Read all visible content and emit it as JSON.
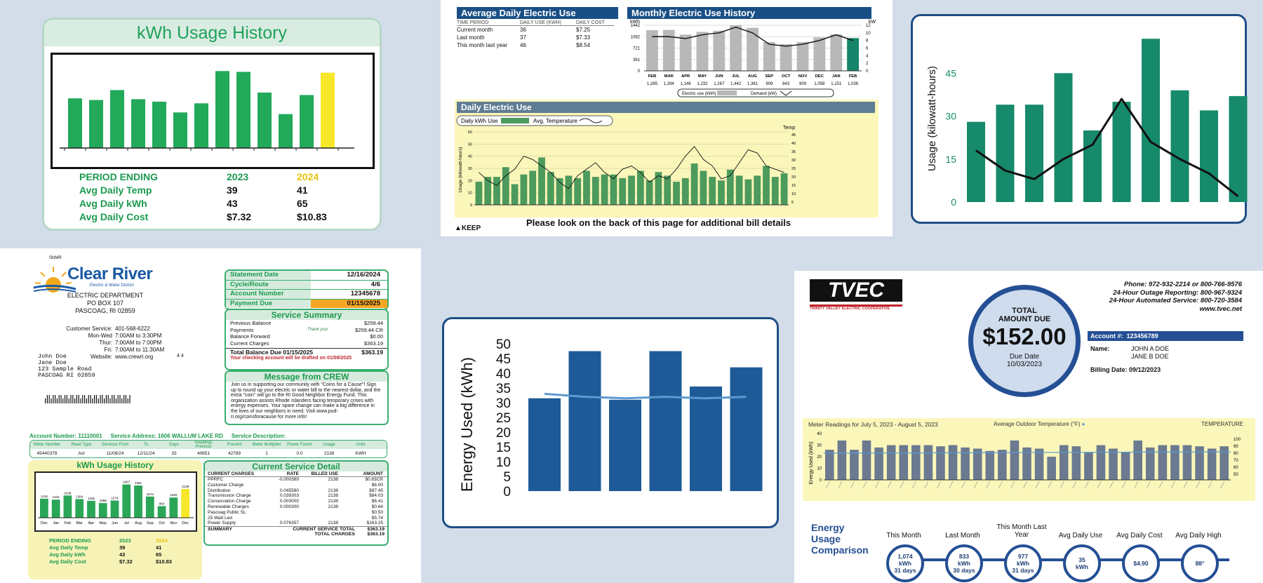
{
  "panel_a": {
    "title": "kWh Usage History",
    "bars": [
      60,
      58,
      70,
      59,
      56,
      43,
      54,
      93,
      92,
      67,
      41,
      64,
      91
    ],
    "highlight_index": 12,
    "colors": {
      "bar": "#22a95a",
      "highlight": "#f6e72a"
    },
    "rows": [
      {
        "label": "PERIOD ENDING",
        "a": "2023",
        "b": "2024"
      },
      {
        "label": "Avg Daily Temp",
        "a": "39",
        "b": "41"
      },
      {
        "label": "Avg Daily kWh",
        "a": "43",
        "b": "65"
      },
      {
        "label": "Avg Daily Cost",
        "a": "$7.32",
        "b": "$10.83"
      }
    ]
  },
  "panel_b": {
    "avg_title": "Average Daily Electric Use",
    "avg_cols": [
      "TIME PERIOD",
      "DAILY USE (KWH)",
      "DAILY COST"
    ],
    "avg_rows": [
      {
        "period": "Current month",
        "use": "36",
        "cost": "$7.25"
      },
      {
        "period": "Last month",
        "use": "37",
        "cost": "$7.33"
      },
      {
        "period": "This month last year",
        "use": "46",
        "cost": "$8.54"
      }
    ],
    "monthly_title": "Monthly Electric Use History",
    "monthly_unit_left": "kWh",
    "monthly_unit_right": "kW",
    "monthly_y_ticks": [
      "1442",
      "1082",
      "721",
      "361",
      "0"
    ],
    "monthly_y2_ticks": [
      "12",
      "10",
      "8",
      "6",
      "4",
      "2",
      "0"
    ],
    "monthly_months": [
      "FEB",
      "MAR",
      "APR",
      "MAY",
      "JUN",
      "JUL",
      "AUG",
      "SEP",
      "OCT",
      "NOV",
      "DEC",
      "JAN",
      "FEB"
    ],
    "monthly_values": [
      "1,285",
      "1,294",
      "1,146",
      "1,232",
      "1,267",
      "1,442",
      "1,361",
      "909",
      "843",
      "909",
      "1,058",
      "1,151",
      "1,036"
    ],
    "monthly_kwh": [
      1285,
      1294,
      1146,
      1232,
      1267,
      1442,
      1361,
      909,
      843,
      909,
      1058,
      1151,
      1036
    ],
    "monthly_demand": [
      9,
      9,
      8.5,
      9.5,
      10,
      11.5,
      10,
      7,
      6.5,
      7,
      8,
      9.5,
      8
    ],
    "monthly_legend": [
      "Electric use (kWh)",
      "Demand (kW)"
    ],
    "daily_title": "Daily Electric Use",
    "daily_legend": [
      "Daily kWh Use",
      "Avg. Temperature"
    ],
    "daily_ylabel": "Usage (kilowatt-hours)",
    "daily_y2label": "Temp",
    "daily_y_ticks": [
      "60",
      "50",
      "40",
      "30",
      "20",
      "10",
      "0"
    ],
    "daily_y2_ticks": [
      "45",
      "40",
      "35",
      "30",
      "25",
      "20",
      "15",
      "10",
      "5"
    ],
    "daily_kwh": [
      19,
      23,
      23,
      31,
      17,
      25,
      28,
      39,
      27,
      22,
      24,
      22,
      28,
      23,
      25,
      25,
      22,
      24,
      28,
      20,
      27,
      24,
      19,
      22,
      34,
      28,
      23,
      20,
      29,
      24,
      21,
      24,
      32,
      23,
      26
    ],
    "daily_temp": [
      20,
      15,
      12,
      18,
      22,
      30,
      28,
      24,
      20,
      14,
      10,
      18,
      22,
      26,
      20,
      16,
      22,
      24,
      20,
      14,
      18,
      16,
      22,
      30,
      36,
      28,
      24,
      16,
      18,
      26,
      34,
      32,
      24,
      22,
      20
    ],
    "footer_note": "Please look on the back of this page for additional bill details",
    "keep": "KEEP"
  },
  "panel_c": {
    "ylabel": "Usage (kilowatt-hours)",
    "y_ticks": [
      "45",
      "30",
      "15",
      "0"
    ],
    "bars": [
      28,
      34,
      34,
      45,
      25,
      35,
      57,
      39,
      32,
      37
    ],
    "line": [
      18,
      11,
      8,
      15,
      20,
      36,
      21,
      15,
      10,
      2
    ],
    "colors": {
      "bar": "#168a6a",
      "line": "#111111"
    }
  },
  "panel_d": {
    "logo_top": "SNMR",
    "logo_name": "Clear River",
    "logo_sub": "Electric & Water District",
    "address": [
      "ELECTRIC DEPARTMENT",
      "PO BOX 107",
      "PASCOAG, RI 02859"
    ],
    "hours": [
      {
        "k": "Customer Service:",
        "v": "401-568-6222"
      },
      {
        "k": "Mon-Wed",
        "v": "7:00AM to 3:30PM"
      },
      {
        "k": "Thur:",
        "v": "7:00AM to 7:00PM"
      },
      {
        "k": "Fri:",
        "v": "7:00AM to 11:30AM"
      },
      {
        "k": "Website:",
        "v": "www.crewri.org"
      }
    ],
    "customer": [
      "John Doe",
      "Jane Doe",
      "123 Sample Road",
      "PASCOAG RI 02859"
    ],
    "customer_code": "4 4",
    "stmt": [
      {
        "k": "Statement Date",
        "v": "12/16/2024"
      },
      {
        "k": "Cycle/Route",
        "v": "4/6"
      },
      {
        "k": "Account Number",
        "v": "12345678"
      },
      {
        "k": "Payment Due",
        "v": "01/15/2025"
      }
    ],
    "service_title": "Service Summary",
    "service": [
      {
        "k": "Previous Balance",
        "m": "",
        "v": "$259.44"
      },
      {
        "k": "Payments",
        "m": "Thank you!",
        "v": "$259.44 CR"
      },
      {
        "k": "Balance Forward",
        "m": "",
        "v": "$0.00"
      },
      {
        "k": "Current Charges",
        "m": "",
        "v": "$363.19"
      }
    ],
    "total_due_label": "Total Balance Due 01/15/2025",
    "total_due": "$363.19",
    "draft_note": "Your checking account will be drafted on 01/08/2025",
    "message_title": "Message from CREW",
    "message_text": "Join us in supporting our community with \"Coins for a Cause\"! Sign up to round up your electric or water bill to the nearest dollar, and the extra \"coin\" will go to the RI Good Neighbor Energy Fund. This organization assists Rhode Islanders facing temporary crises with energy expenses. Your spare change can make a big difference in the lives of our neighbors in need. Visit www.pud-ri.org/coinsforacause for more info!",
    "acct_line": {
      "account": "Account Number: 11110001",
      "service": "Service Address: 1606 WALLUM LAKE RD",
      "desc": "Service Description:"
    },
    "meter_headers": [
      "Meter Number",
      "Read Type",
      "Services From",
      "To",
      "Days",
      "Readings Previous",
      "Present",
      "Meter Multiplier",
      "Power Factor",
      "Usage",
      "Units"
    ],
    "meter_row": [
      "45440378",
      "Act",
      "11/08/24",
      "12/11/24",
      "33",
      "40651",
      "42789",
      "1",
      "0.0",
      "2138",
      "KWH"
    ],
    "mini_title": "kWh Usage History",
    "mini_values": [
      "1415",
      "1344",
      "1649",
      "1384",
      "1255",
      "1088",
      "1274",
      "2467",
      "2391",
      "1573",
      "864",
      "1500",
      "2138"
    ],
    "mini_months": [
      "Dec",
      "Jan",
      "Feb",
      "Mar",
      "Apr",
      "May",
      "Jun",
      "Jul",
      "Aug",
      "Sep",
      "Oct",
      "Nov",
      "Dec"
    ],
    "mini_bars": [
      1415,
      1344,
      1649,
      1384,
      1255,
      1088,
      1274,
      2467,
      2391,
      1573,
      864,
      1500,
      2138
    ],
    "mini_rows": [
      {
        "label": "PERIOD ENDING",
        "a": "2023",
        "b": "2024"
      },
      {
        "label": "Avg Daily Temp",
        "a": "39",
        "b": "41"
      },
      {
        "label": "Avg Daily kWh",
        "a": "43",
        "b": "65"
      },
      {
        "label": "Avg Daily Cost",
        "a": "$7.32",
        "b": "$10.83"
      }
    ],
    "current_title": "Current Service Detail",
    "current_headers": [
      "CURRENT CHARGES",
      "RATE",
      "BILLED USE",
      "AMOUNT"
    ],
    "current_rows": [
      {
        "n": "PPRFC",
        "r": "-0.000389",
        "u": "2138",
        "a": "$0.83CR"
      },
      {
        "n": "Customer Charge",
        "r": "",
        "u": "",
        "a": "$6.00"
      },
      {
        "n": "Distribution",
        "r": "0.045580",
        "u": "2138",
        "a": "$97.45"
      },
      {
        "n": "Transmission Charge",
        "r": "0.039303",
        "u": "2138",
        "a": "$84.03"
      },
      {
        "n": "Conservation Charge",
        "r": "0.003000",
        "u": "2138",
        "a": "$6.41"
      },
      {
        "n": "Renewable Charges",
        "r": "0.000300",
        "u": "2138",
        "a": "$0.64"
      },
      {
        "n": "Pascoag Public SL",
        "r": "",
        "u": "",
        "a": "$0.50"
      },
      {
        "n": "25 Watt Led",
        "r": "",
        "u": "",
        "a": "$5.74"
      },
      {
        "n": "Power Supply",
        "r": "0.076357",
        "u": "2138",
        "a": "$163.25"
      }
    ],
    "summary_label": "SUMMARY",
    "summary_total_label": "CURRENT SERVICE TOTAL",
    "summary_total": "$363.19",
    "total_charges_label": "TOTAL CHARGES",
    "total_charges": "$363.19"
  },
  "panel_e": {
    "ylabel": "Energy Used (kWh)",
    "y_ticks": [
      "50",
      "45",
      "40",
      "35",
      "30",
      "25",
      "20",
      "15",
      "10",
      "5",
      "0"
    ],
    "bars": [
      31.5,
      47.5,
      31,
      47.5,
      35.5,
      42
    ],
    "line": [
      33,
      32,
      31.5,
      32,
      31.5,
      32
    ],
    "colors": {
      "bar": "#1e5a97",
      "line": "#5b9ad1"
    }
  },
  "panel_f": {
    "logo": "TVEC",
    "logo_sub": "TRINITY VALLEY ELECTRIC COOPERATIVE",
    "contacts": [
      {
        "k": "Phone:",
        "v": "972-932-2214 or 800-766-9576"
      },
      {
        "k": "24-Hour Outage Reporting:",
        "v": "800-967-9324"
      },
      {
        "k": "24-Hour Automated Service:",
        "v": "800-720-3584"
      },
      {
        "k": "",
        "v": "www.tvec.net"
      }
    ],
    "total_label": "TOTAL AMOUNT DUE",
    "total": "$152.00",
    "due_label": "Due Date",
    "due_date": "10/03/2023",
    "account_label": "Account #:",
    "account": "123456789",
    "name_label": "Name:",
    "names": [
      "JOHN A DOE",
      "JANE B DOE"
    ],
    "billing_label": "Billing Date:",
    "billing_date": "09/12/2023",
    "chart_title": "Meter Readings for July 5, 2023 - August 5, 2023",
    "chart_legend": "Average Outdoor Temperature (°F)",
    "chart_right": "TEMPERATURE",
    "chart_ylabel": "Energy Used (kWh)",
    "chart_y_ticks": [
      "40",
      "30",
      "20",
      "10",
      "0"
    ],
    "chart_y2_ticks": [
      "100",
      "90",
      "80",
      "70",
      "60",
      "50"
    ],
    "chart_bars": [
      26,
      34,
      26,
      34,
      28,
      30,
      30,
      30,
      30,
      29,
      30,
      28,
      27,
      25,
      26,
      34,
      28,
      27,
      20,
      30,
      29,
      24,
      30,
      27,
      24,
      34,
      28,
      30,
      30,
      30,
      29,
      27,
      29
    ],
    "comparison_label": "Energy Usage Comparison",
    "comparison": [
      {
        "head": "This Month",
        "l1": "1,074",
        "l2": "kWh",
        "l3": "31 days"
      },
      {
        "head": "Last Month",
        "l1": "833",
        "l2": "kWh",
        "l3": "30 days"
      },
      {
        "head": "This Month Last Year",
        "l1": "977",
        "l2": "kWh",
        "l3": "31 days"
      },
      {
        "head": "Avg Daily Use",
        "l1": "35",
        "l2": "kWh",
        "l3": ""
      },
      {
        "head": "Avg Daily Cost",
        "l1": "$4.90",
        "l2": "",
        "l3": ""
      },
      {
        "head": "Avg Daily High",
        "l1": "88°",
        "l2": "",
        "l3": ""
      }
    ]
  }
}
